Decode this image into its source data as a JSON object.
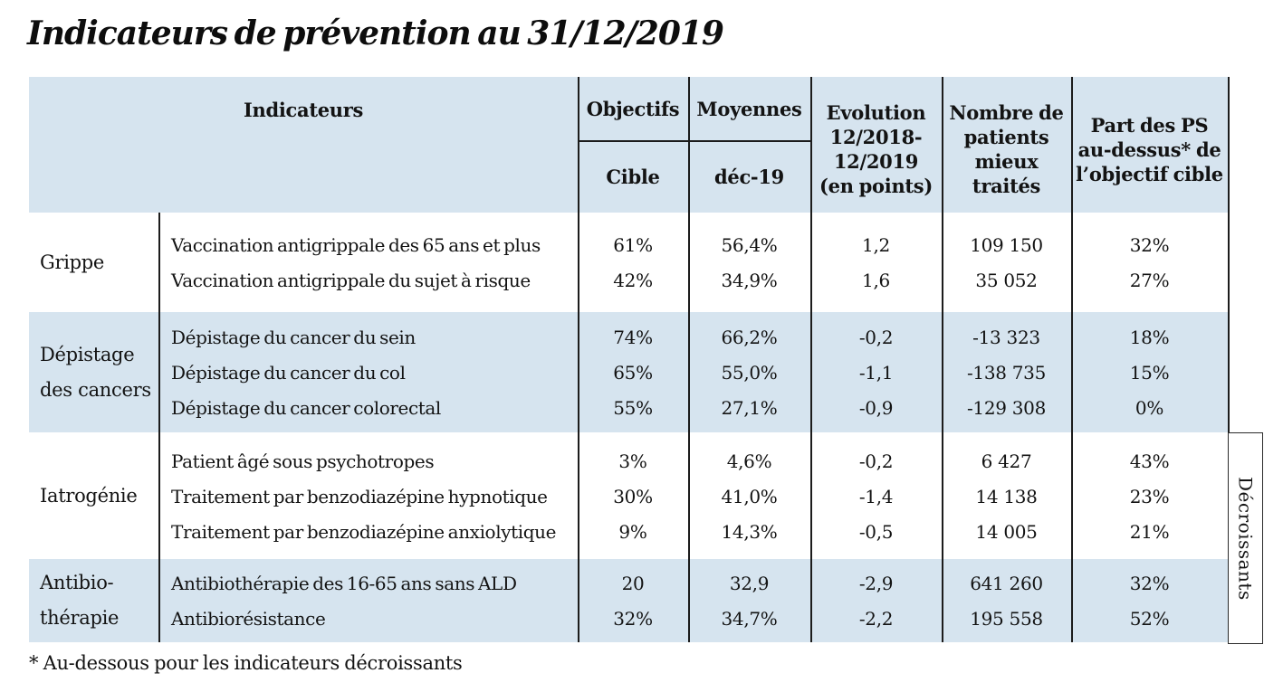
{
  "page": {
    "title": "Indicateurs de prévention au 31/12/2019",
    "footnote": "* Au-dessous pour les indicateurs décroissants"
  },
  "colors": {
    "band_blue": "#d6e4ef",
    "band_white": "#ffffff",
    "grid_line": "#1c1c1c",
    "text": "#131313"
  },
  "table": {
    "header": {
      "indicateurs": "Indicateurs",
      "objectifs": "Objectifs",
      "cible": "Cible",
      "moyennes": "Moyennes",
      "dec19": "déc-19",
      "evolution": "Evolution\n12/2018-\n12/2019\n(en points)",
      "nombre_patients": "Nombre de\npatients\nmieux\ntraités",
      "part_ps": "Part des PS\nau-dessus* de\nl’objectif cible"
    },
    "side_label": "Décroissants",
    "sections": [
      {
        "group": "Grippe",
        "rows": [
          {
            "name": "Vaccination antigrippale des 65 ans et plus",
            "cible": "61%",
            "moyenne": "56,4%",
            "evolution": "1,2",
            "patients": "109 150",
            "part": "32%"
          },
          {
            "name": "Vaccination antigrippale du sujet à risque",
            "cible": "42%",
            "moyenne": "34,9%",
            "evolution": "1,6",
            "patients": "35 052",
            "part": "27%"
          }
        ]
      },
      {
        "group": "Dépistage\ndes cancers",
        "rows": [
          {
            "name": "Dépistage du cancer du sein",
            "cible": "74%",
            "moyenne": "66,2%",
            "evolution": "-0,2",
            "patients": "-13 323",
            "part": "18%"
          },
          {
            "name": "Dépistage du cancer du col",
            "cible": "65%",
            "moyenne": "55,0%",
            "evolution": "-1,1",
            "patients": "-138 735",
            "part": "15%"
          },
          {
            "name": "Dépistage du cancer colorectal",
            "cible": "55%",
            "moyenne": "27,1%",
            "evolution": "-0,9",
            "patients": "-129 308",
            "part": "0%"
          }
        ]
      },
      {
        "group": "Iatrogénie",
        "rows": [
          {
            "name": "Patient âgé sous psychotropes",
            "cible": "3%",
            "moyenne": "4,6%",
            "evolution": "-0,2",
            "patients": "6 427",
            "part": "43%"
          },
          {
            "name": "Traitement par benzodiazépine hypnotique",
            "cible": "30%",
            "moyenne": "41,0%",
            "evolution": "-1,4",
            "patients": "14 138",
            "part": "23%"
          },
          {
            "name": "Traitement par benzodiazépine anxiolytique",
            "cible": "9%",
            "moyenne": "14,3%",
            "evolution": "-0,5",
            "patients": "14 005",
            "part": "21%"
          }
        ]
      },
      {
        "group": "Antibio-\nthérapie",
        "rows": [
          {
            "name": "Antibiothérapie des 16-65 ans sans ALD",
            "cible": "20",
            "moyenne": "32,9",
            "evolution": "-2,9",
            "patients": "641 260",
            "part": "32%"
          },
          {
            "name": "Antibiorésistance",
            "cible": "32%",
            "moyenne": "34,7%",
            "evolution": "-2,2",
            "patients": "195 558",
            "part": "52%"
          }
        ]
      }
    ]
  }
}
